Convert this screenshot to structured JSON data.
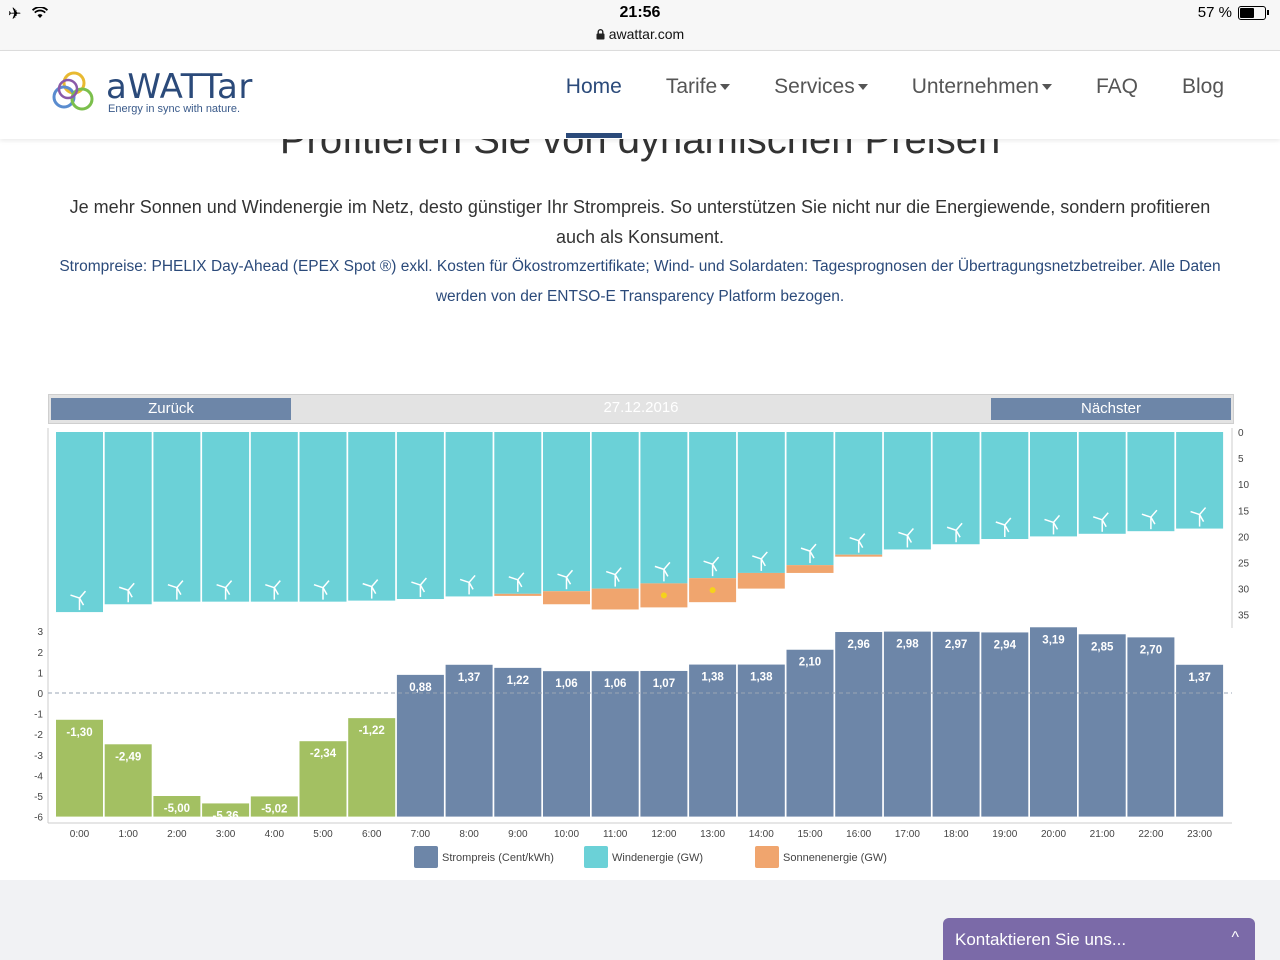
{
  "status_bar": {
    "time": "21:56",
    "url": "awattar.com",
    "battery": "57 %"
  },
  "logo": {
    "word": "aWATTar",
    "tagline": "Energy in sync with nature."
  },
  "nav": {
    "items": [
      {
        "label": "Home",
        "active": true,
        "dropdown": false
      },
      {
        "label": "Tarife",
        "active": false,
        "dropdown": true
      },
      {
        "label": "Services",
        "active": false,
        "dropdown": true
      },
      {
        "label": "Unternehmen",
        "active": false,
        "dropdown": true
      },
      {
        "label": "FAQ",
        "active": false,
        "dropdown": false
      },
      {
        "label": "Blog",
        "active": false,
        "dropdown": false
      }
    ]
  },
  "page": {
    "headline": "Profitieren Sie von dynamischen Preisen",
    "intro": "Je mehr Sonnen und Windenergie im Netz, desto günstiger Ihr Strompreis. So unterstützen Sie nicht nur die Energiewende, sondern profitieren auch als Konsument.",
    "source": "Strompreise: PHELIX Day-Ahead (EPEX Spot ®) exkl. Kosten für Ökostromzertifikate; Wind- und Solardaten: Tagesprognosen der Übertragungsnetzbetreiber. Alle Daten werden von der ENTSO-E Transparency Platform bezogen."
  },
  "chart_nav": {
    "back_label": "Zurück",
    "date": "27.12.2016",
    "next_label": "Nächster"
  },
  "chart_data": {
    "type": "bar",
    "categories": [
      "0:00",
      "1:00",
      "2:00",
      "3:00",
      "4:00",
      "5:00",
      "6:00",
      "7:00",
      "8:00",
      "9:00",
      "10:00",
      "11:00",
      "12:00",
      "13:00",
      "14:00",
      "15:00",
      "16:00",
      "17:00",
      "18:00",
      "19:00",
      "20:00",
      "21:00",
      "22:00",
      "23:00"
    ],
    "series": [
      {
        "name": "Strompreis (Cent/kWh)",
        "labels": [
          "-1,30",
          "-2,49",
          "-5,00",
          "-5,36",
          "-5,02",
          "-2,34",
          "-1,22",
          "0,88",
          "1,37",
          "1,22",
          "1,06",
          "1,06",
          "1,07",
          "1,38",
          "1,38",
          "2,10",
          "2,96",
          "2,98",
          "2,97",
          "2,94",
          "3,19",
          "2,85",
          "2,70",
          "1,37"
        ],
        "values": [
          -1.3,
          -2.49,
          -5.0,
          -5.36,
          -5.02,
          -2.34,
          -1.22,
          0.88,
          1.37,
          1.22,
          1.06,
          1.06,
          1.07,
          1.38,
          1.38,
          2.1,
          2.96,
          2.98,
          2.97,
          2.94,
          3.19,
          2.85,
          2.7,
          1.37
        ]
      },
      {
        "name": "Windenergie (GW)",
        "values": [
          34.5,
          33.0,
          32.5,
          32.5,
          32.5,
          32.5,
          32.3,
          32.0,
          31.5,
          31.0,
          30.5,
          30.0,
          29.0,
          28.0,
          27.0,
          25.5,
          23.5,
          22.5,
          21.5,
          20.5,
          20.0,
          19.5,
          19.0,
          18.5
        ]
      },
      {
        "name": "Sonnenenergie (GW)",
        "values": [
          0,
          0,
          0,
          0,
          0,
          0,
          0,
          0,
          0,
          0.4,
          2.5,
          4.0,
          4.6,
          4.6,
          3.0,
          1.5,
          0.3,
          0,
          0,
          0,
          0,
          0,
          0,
          0
        ]
      }
    ],
    "price_axis": {
      "range": [
        -6,
        3
      ],
      "ticks": [
        "3",
        "2",
        "1",
        "0",
        "-1",
        "-2",
        "-3",
        "-4",
        "-5",
        "-6"
      ]
    },
    "energy_axis": {
      "range": [
        0,
        35
      ],
      "ticks": [
        "0",
        "5",
        "10",
        "15",
        "20",
        "25",
        "30",
        "35"
      ],
      "inverted": true
    },
    "colors": {
      "price_positive": "#6d86a8",
      "price_negative": "#a3c062",
      "wind": "#6bd1d7",
      "solar": "#f0a56e",
      "sun_dot": "#f5d21c"
    },
    "legend_placement": "bottom-center",
    "zero_line": "dashed"
  },
  "contact": {
    "label": "Kontaktieren Sie uns...",
    "chevron": "^"
  }
}
